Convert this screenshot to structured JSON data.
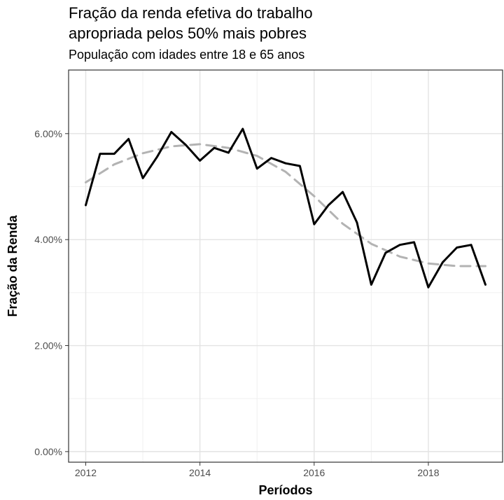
{
  "chart_data": {
    "type": "line",
    "title": "Fração da renda efetiva do trabalho\napropriada pelos 50% mais pobres",
    "subtitle": "População com idades entre 18 e 65 anos",
    "xlabel": "Períodos",
    "ylabel": "Fração da Renda",
    "xlim": [
      2011.7,
      2019.3
    ],
    "ylim": [
      -0.2,
      7.2
    ],
    "x_ticks": [
      2012,
      2014,
      2016,
      2018
    ],
    "x_tick_labels": [
      "2012",
      "2014",
      "2016",
      "2018"
    ],
    "y_ticks": [
      0,
      2,
      4,
      6
    ],
    "y_tick_labels": [
      "0.00%",
      "2.00%",
      "4.00%",
      "6.00%"
    ],
    "grid": true,
    "legend": "none",
    "series": [
      {
        "style": "solid",
        "color": "#000000",
        "x": [
          2012.0,
          2012.25,
          2012.5,
          2012.75,
          2013.0,
          2013.25,
          2013.5,
          2013.75,
          2014.0,
          2014.25,
          2014.5,
          2014.75,
          2015.0,
          2015.25,
          2015.5,
          2015.75,
          2016.0,
          2016.25,
          2016.5,
          2016.75,
          2017.0,
          2017.25,
          2017.5,
          2017.75,
          2018.0,
          2018.25,
          2018.5,
          2018.75,
          2019.0
        ],
        "y": [
          4.65,
          5.62,
          5.62,
          5.9,
          5.16,
          5.56,
          6.03,
          5.79,
          5.49,
          5.73,
          5.64,
          6.09,
          5.34,
          5.54,
          5.44,
          5.39,
          4.29,
          4.65,
          4.9,
          4.32,
          3.15,
          3.75,
          3.9,
          3.95,
          3.1,
          3.57,
          3.85,
          3.9,
          3.15
        ]
      },
      {
        "style": "dashed",
        "color": "#b3b3b3",
        "x": [
          2012.0,
          2012.5,
          2013.0,
          2013.5,
          2014.0,
          2014.5,
          2015.0,
          2015.5,
          2016.0,
          2016.5,
          2017.0,
          2017.5,
          2018.0,
          2018.5,
          2019.0
        ],
        "y": [
          5.08,
          5.42,
          5.63,
          5.76,
          5.8,
          5.73,
          5.58,
          5.28,
          4.82,
          4.3,
          3.92,
          3.68,
          3.55,
          3.5,
          3.5
        ]
      }
    ]
  }
}
